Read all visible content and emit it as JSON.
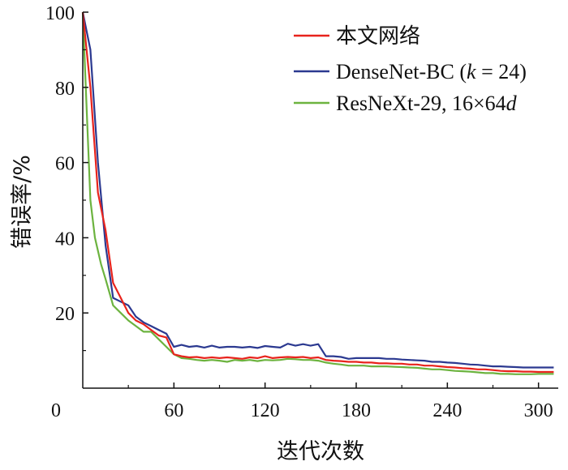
{
  "chart_data": {
    "type": "line",
    "xlabel": "迭代次数",
    "ylabel": "错误率/%",
    "xlim": [
      0,
      313
    ],
    "ylim": [
      0,
      100
    ],
    "x_ticks": [
      0,
      60,
      120,
      180,
      240,
      300
    ],
    "y_ticks": [
      20,
      40,
      60,
      80,
      100
    ],
    "origin_label": "0",
    "grid": false,
    "legend_position": "top-right",
    "series": [
      {
        "name": "本文网络",
        "color": "#e8231c",
        "points": [
          [
            0,
            100
          ],
          [
            5,
            80
          ],
          [
            10,
            52
          ],
          [
            15,
            42
          ],
          [
            20,
            28
          ],
          [
            25,
            24
          ],
          [
            30,
            20
          ],
          [
            35,
            18
          ],
          [
            40,
            17
          ],
          [
            45,
            15.5
          ],
          [
            50,
            14
          ],
          [
            55,
            13.5
          ],
          [
            60,
            9
          ],
          [
            65,
            8.5
          ],
          [
            70,
            8.2
          ],
          [
            75,
            8.3
          ],
          [
            80,
            8
          ],
          [
            85,
            8.2
          ],
          [
            90,
            8
          ],
          [
            95,
            8.2
          ],
          [
            100,
            8
          ],
          [
            105,
            7.8
          ],
          [
            110,
            8.2
          ],
          [
            115,
            8
          ],
          [
            120,
            8.5
          ],
          [
            125,
            8
          ],
          [
            130,
            8.2
          ],
          [
            135,
            8.3
          ],
          [
            140,
            8.2
          ],
          [
            145,
            8.3
          ],
          [
            150,
            8
          ],
          [
            155,
            8.2
          ],
          [
            160,
            7.5
          ],
          [
            165,
            7.3
          ],
          [
            170,
            7.2
          ],
          [
            175,
            7
          ],
          [
            180,
            7
          ],
          [
            185,
            6.8
          ],
          [
            190,
            6.8
          ],
          [
            195,
            6.6
          ],
          [
            200,
            6.6
          ],
          [
            205,
            6.5
          ],
          [
            210,
            6.5
          ],
          [
            215,
            6.3
          ],
          [
            220,
            6.3
          ],
          [
            225,
            6
          ],
          [
            230,
            6
          ],
          [
            235,
            5.8
          ],
          [
            240,
            5.6
          ],
          [
            245,
            5.5
          ],
          [
            250,
            5.3
          ],
          [
            255,
            5.2
          ],
          [
            260,
            5
          ],
          [
            265,
            5
          ],
          [
            270,
            4.8
          ],
          [
            275,
            4.6
          ],
          [
            280,
            4.5
          ],
          [
            285,
            4.5
          ],
          [
            290,
            4.4
          ],
          [
            295,
            4.4
          ],
          [
            300,
            4.3
          ],
          [
            305,
            4.3
          ],
          [
            310,
            4.3
          ]
        ]
      },
      {
        "name": "DenseNet-BC (k = 24)",
        "color": "#2b3990",
        "points": [
          [
            0,
            100
          ],
          [
            5,
            90
          ],
          [
            10,
            60
          ],
          [
            15,
            38
          ],
          [
            20,
            24
          ],
          [
            25,
            23
          ],
          [
            30,
            22
          ],
          [
            35,
            19
          ],
          [
            40,
            17.5
          ],
          [
            45,
            16.5
          ],
          [
            50,
            15.5
          ],
          [
            55,
            14.5
          ],
          [
            60,
            11
          ],
          [
            65,
            11.5
          ],
          [
            70,
            11
          ],
          [
            75,
            11.2
          ],
          [
            80,
            10.8
          ],
          [
            85,
            11.3
          ],
          [
            90,
            10.8
          ],
          [
            95,
            11
          ],
          [
            100,
            11
          ],
          [
            105,
            10.8
          ],
          [
            110,
            11
          ],
          [
            115,
            10.7
          ],
          [
            120,
            11.2
          ],
          [
            125,
            11
          ],
          [
            130,
            10.8
          ],
          [
            135,
            11.8
          ],
          [
            140,
            11.3
          ],
          [
            145,
            11.7
          ],
          [
            150,
            11.3
          ],
          [
            155,
            11.7
          ],
          [
            160,
            8.5
          ],
          [
            165,
            8.5
          ],
          [
            170,
            8.3
          ],
          [
            175,
            7.8
          ],
          [
            180,
            8
          ],
          [
            185,
            8
          ],
          [
            190,
            8
          ],
          [
            195,
            8
          ],
          [
            200,
            7.8
          ],
          [
            205,
            7.8
          ],
          [
            210,
            7.6
          ],
          [
            215,
            7.5
          ],
          [
            220,
            7.4
          ],
          [
            225,
            7.3
          ],
          [
            230,
            7
          ],
          [
            235,
            7
          ],
          [
            240,
            6.8
          ],
          [
            245,
            6.7
          ],
          [
            250,
            6.5
          ],
          [
            255,
            6.3
          ],
          [
            260,
            6.2
          ],
          [
            265,
            6
          ],
          [
            270,
            5.8
          ],
          [
            275,
            5.8
          ],
          [
            280,
            5.7
          ],
          [
            285,
            5.6
          ],
          [
            290,
            5.5
          ],
          [
            295,
            5.5
          ],
          [
            300,
            5.5
          ],
          [
            305,
            5.5
          ],
          [
            310,
            5.5
          ]
        ]
      },
      {
        "name": "ResNeXt-29, 16×64d",
        "color": "#6cb33f",
        "points": [
          [
            0,
            100
          ],
          [
            3,
            70
          ],
          [
            5,
            50
          ],
          [
            8,
            40
          ],
          [
            12,
            33
          ],
          [
            15,
            29
          ],
          [
            20,
            22
          ],
          [
            25,
            20
          ],
          [
            30,
            18
          ],
          [
            35,
            16.5
          ],
          [
            40,
            15
          ],
          [
            45,
            15
          ],
          [
            50,
            13
          ],
          [
            55,
            11
          ],
          [
            60,
            9
          ],
          [
            65,
            8
          ],
          [
            70,
            7.8
          ],
          [
            75,
            7.5
          ],
          [
            80,
            7.3
          ],
          [
            85,
            7.5
          ],
          [
            90,
            7.3
          ],
          [
            95,
            7
          ],
          [
            100,
            7.5
          ],
          [
            105,
            7.3
          ],
          [
            110,
            7.5
          ],
          [
            115,
            7.2
          ],
          [
            120,
            7.5
          ],
          [
            125,
            7.4
          ],
          [
            130,
            7.5
          ],
          [
            135,
            7.8
          ],
          [
            140,
            7.7
          ],
          [
            145,
            7.5
          ],
          [
            150,
            7.5
          ],
          [
            155,
            7.3
          ],
          [
            160,
            6.8
          ],
          [
            165,
            6.5
          ],
          [
            170,
            6.3
          ],
          [
            175,
            6
          ],
          [
            180,
            6
          ],
          [
            185,
            6
          ],
          [
            190,
            5.8
          ],
          [
            195,
            5.8
          ],
          [
            200,
            5.8
          ],
          [
            205,
            5.7
          ],
          [
            210,
            5.6
          ],
          [
            215,
            5.5
          ],
          [
            220,
            5.4
          ],
          [
            225,
            5.2
          ],
          [
            230,
            5
          ],
          [
            235,
            5
          ],
          [
            240,
            4.8
          ],
          [
            245,
            4.6
          ],
          [
            250,
            4.5
          ],
          [
            255,
            4.4
          ],
          [
            260,
            4.2
          ],
          [
            265,
            4
          ],
          [
            270,
            4
          ],
          [
            275,
            3.8
          ],
          [
            280,
            3.8
          ],
          [
            285,
            3.7
          ],
          [
            290,
            3.7
          ],
          [
            295,
            3.7
          ],
          [
            300,
            3.8
          ],
          [
            305,
            3.8
          ],
          [
            310,
            3.8
          ]
        ]
      }
    ]
  },
  "legend": {
    "items": [
      {
        "label_main": "本文网络",
        "label_italic": "",
        "label_tail": ""
      },
      {
        "label_main": "DenseNet-BC (",
        "label_italic": "k",
        "label_tail": " = 24)"
      },
      {
        "label_main": "ResNeXt-29, 16×64",
        "label_italic": "d",
        "label_tail": ""
      }
    ]
  }
}
